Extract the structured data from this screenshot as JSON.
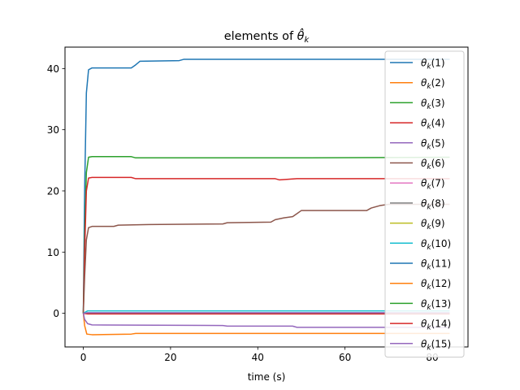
{
  "chart_data": {
    "type": "line",
    "title": "elements of θ̂_k",
    "title_parts": {
      "prefix": "elements of ",
      "base": "θ̂",
      "sub": "k"
    },
    "xlabel": "time (s)",
    "ylabel": "",
    "xlim": [
      -4.2,
      88.2
    ],
    "ylim": [
      -5.5,
      43.5
    ],
    "x_ticks": [
      0,
      20,
      40,
      60,
      80
    ],
    "y_ticks": [
      0,
      10,
      20,
      30,
      40
    ],
    "x_tick_labels": [
      "0",
      "20",
      "40",
      "60",
      "80"
    ],
    "y_tick_labels": [
      "0",
      "10",
      "20",
      "30",
      "40"
    ],
    "grid": false,
    "legend_position": "right",
    "series": [
      {
        "name": "θk(1)",
        "color": "#1f77b4",
        "points": [
          [
            0,
            0
          ],
          [
            0.3,
            20
          ],
          [
            0.7,
            36
          ],
          [
            1.2,
            39.8
          ],
          [
            2,
            40.1
          ],
          [
            11,
            40.1
          ],
          [
            12,
            40.6
          ],
          [
            13,
            41.2
          ],
          [
            22,
            41.3
          ],
          [
            23,
            41.5
          ],
          [
            84,
            41.5
          ]
        ]
      },
      {
        "name": "θk(2)",
        "color": "#ff7f0e",
        "points": [
          [
            0,
            0
          ],
          [
            0.3,
            -2
          ],
          [
            0.8,
            -3.4
          ],
          [
            2,
            -3.5
          ],
          [
            11,
            -3.4
          ],
          [
            12,
            -3.3
          ],
          [
            84,
            -3.3
          ]
        ]
      },
      {
        "name": "θk(3)",
        "color": "#2ca02c",
        "points": [
          [
            0,
            0
          ],
          [
            0.3,
            12
          ],
          [
            0.7,
            23
          ],
          [
            1.2,
            25.5
          ],
          [
            2,
            25.6
          ],
          [
            11,
            25.6
          ],
          [
            12,
            25.4
          ],
          [
            50,
            25.4
          ],
          [
            84,
            25.5
          ]
        ]
      },
      {
        "name": "θk(4)",
        "color": "#d62728",
        "points": [
          [
            0,
            0
          ],
          [
            0.3,
            10
          ],
          [
            0.7,
            20
          ],
          [
            1.2,
            22.1
          ],
          [
            2,
            22.2
          ],
          [
            11,
            22.2
          ],
          [
            12,
            22
          ],
          [
            44,
            22
          ],
          [
            45,
            21.8
          ],
          [
            47,
            21.9
          ],
          [
            49,
            22
          ],
          [
            84,
            22
          ]
        ]
      },
      {
        "name": "θk(5)",
        "color": "#9467bd",
        "points": [
          [
            0,
            0
          ],
          [
            0.3,
            -1
          ],
          [
            1,
            -1.7
          ],
          [
            2,
            -1.9
          ],
          [
            32,
            -2
          ],
          [
            33,
            -2.1
          ],
          [
            48,
            -2.1
          ],
          [
            49,
            -2.3
          ],
          [
            84,
            -2.3
          ]
        ]
      },
      {
        "name": "θk(6)",
        "color": "#8c564b",
        "points": [
          [
            0,
            0
          ],
          [
            0.3,
            6
          ],
          [
            0.7,
            12
          ],
          [
            1.2,
            14
          ],
          [
            2,
            14.2
          ],
          [
            7,
            14.2
          ],
          [
            8,
            14.4
          ],
          [
            15,
            14.5
          ],
          [
            32,
            14.6
          ],
          [
            33,
            14.8
          ],
          [
            43,
            14.9
          ],
          [
            44,
            15.3
          ],
          [
            46,
            15.6
          ],
          [
            48,
            15.8
          ],
          [
            49,
            16.3
          ],
          [
            50,
            16.8
          ],
          [
            65,
            16.8
          ],
          [
            66,
            17.2
          ],
          [
            68,
            17.6
          ],
          [
            70,
            17.8
          ],
          [
            84,
            17.8
          ]
        ]
      },
      {
        "name": "θk(7)",
        "color": "#e377c2",
        "points": [
          [
            0,
            0
          ],
          [
            84,
            0
          ]
        ]
      },
      {
        "name": "θk(8)",
        "color": "#7f7f7f",
        "points": [
          [
            0,
            0
          ],
          [
            84,
            0
          ]
        ]
      },
      {
        "name": "θk(9)",
        "color": "#bcbd22",
        "points": [
          [
            0,
            0
          ],
          [
            84,
            0
          ]
        ]
      },
      {
        "name": "θk(10)",
        "color": "#17becf",
        "points": [
          [
            0,
            0
          ],
          [
            1,
            0.4
          ],
          [
            84,
            0.4
          ]
        ]
      },
      {
        "name": "θk(11)",
        "color": "#1f77b4",
        "points": [
          [
            0,
            0
          ],
          [
            84,
            0
          ]
        ]
      },
      {
        "name": "θk(12)",
        "color": "#ff7f0e",
        "points": [
          [
            0,
            0
          ],
          [
            84,
            0
          ]
        ]
      },
      {
        "name": "θk(13)",
        "color": "#2ca02c",
        "points": [
          [
            0,
            0
          ],
          [
            84,
            0
          ]
        ]
      },
      {
        "name": "θk(14)",
        "color": "#d62728",
        "points": [
          [
            0,
            0
          ],
          [
            1,
            -0.1
          ],
          [
            84,
            -0.1
          ]
        ]
      },
      {
        "name": "θk(15)",
        "color": "#9467bd",
        "points": [
          [
            0,
            0
          ],
          [
            1,
            0.1
          ],
          [
            84,
            0.1
          ]
        ]
      }
    ]
  }
}
